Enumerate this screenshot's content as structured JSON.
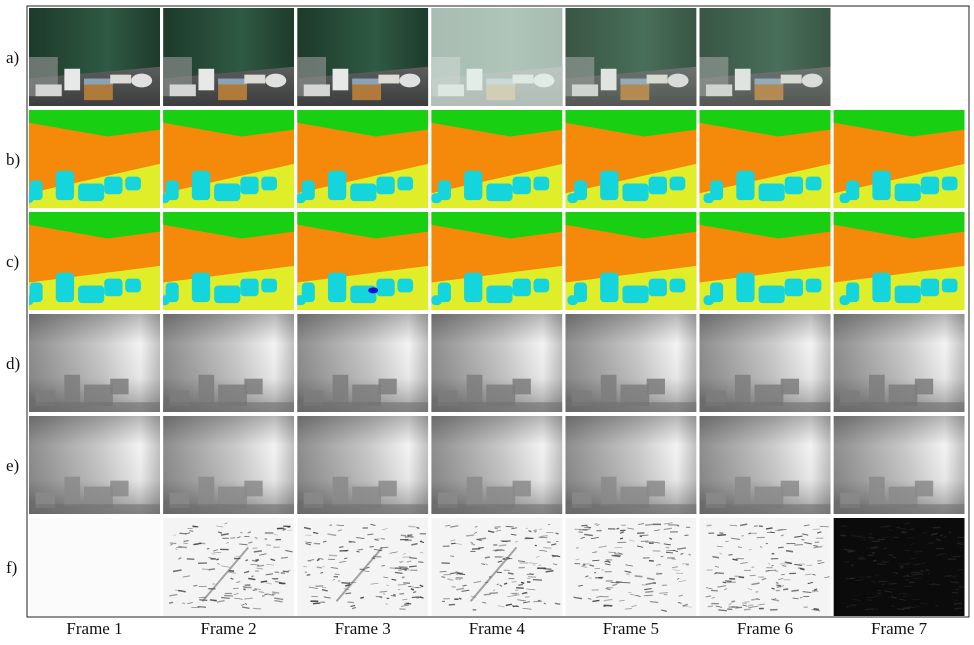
{
  "row_labels": [
    "a)",
    "b)",
    "c)",
    "d)",
    "e)",
    "f)"
  ],
  "column_labels": [
    "Frame 1",
    "Frame 2",
    "Frame 3",
    "Frame 4",
    "Frame 5",
    "Frame 6",
    "Frame 7"
  ]
}
